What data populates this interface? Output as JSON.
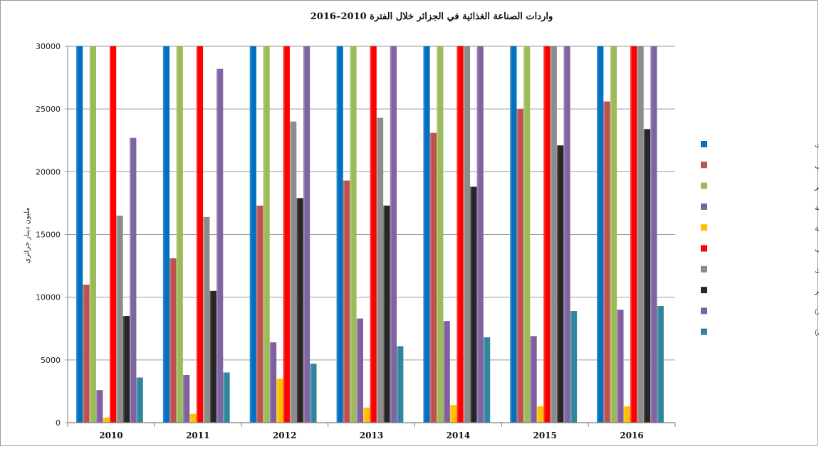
{
  "chart_data": {
    "type": "bar",
    "title": "واردات الصناعة الغذائية في الجزائر خلال الفترة 2010–2016",
    "xlabel": "",
    "ylabel": "مليون دينار جزائري",
    "ylim": [
      0,
      30000
    ],
    "yticks": [
      0,
      5000,
      10000,
      15000,
      20000,
      25000,
      30000
    ],
    "grid": true,
    "legend_position": "right",
    "categories": [
      "2010",
      "2011",
      "2012",
      "2013",
      "2014",
      "2015",
      "2016"
    ],
    "series": [
      {
        "name": "صناعة الزيوت",
        "color": "#0070C0",
        "values": [
          30000,
          30000,
          30000,
          30000,
          30000,
          30000,
          30000
        ]
      },
      {
        "name": "إنتاج الحبوب",
        "color": "#C0504D",
        "values": [
          11000,
          13100,
          17300,
          19300,
          23100,
          25000,
          25600
        ]
      },
      {
        "name": "صناعة السكر",
        "color": "#9BBB59",
        "values": [
          30000,
          30000,
          30000,
          30000,
          30000,
          30000,
          30000
        ]
      },
      {
        "name": "صناعة المشروبات الكحولية",
        "color": "#7F5FA0",
        "values": [
          2600,
          3800,
          6400,
          8300,
          8100,
          6900,
          9000
        ]
      },
      {
        "name": "صناعة المشروبات الغازية",
        "color": "#FFC000",
        "values": [
          400,
          700,
          3500,
          1200,
          1400,
          1300,
          1300
        ]
      },
      {
        "name": "صناعة الحليب",
        "color": "#FF0000",
        "values": [
          30000,
          30000,
          30000,
          30000,
          30000,
          30000,
          30000
        ]
      },
      {
        "name": "صناعة مصبرات اللحوم والأسماك",
        "color": "#8C8C8C",
        "values": [
          16500,
          16400,
          24000,
          24300,
          30000,
          30000,
          30000
        ]
      },
      {
        "name": "صناعة مصبرات الفواكه والخضر",
        "color": "#262626",
        "values": [
          8500,
          10500,
          17900,
          17300,
          18800,
          22100,
          23400
        ]
      },
      {
        "name": "صناعة المنتجات الغذائية (الخميرة، الحلويات،...)",
        "color": "#8064A2",
        "values": [
          22700,
          28200,
          30000,
          30000,
          30000,
          30000,
          30000
        ]
      },
      {
        "name": "صناعة المنتجات الحيوانية (الأعلاف)",
        "color": "#31859C",
        "values": [
          3600,
          4000,
          4700,
          6100,
          6800,
          8900,
          9300
        ]
      }
    ]
  }
}
